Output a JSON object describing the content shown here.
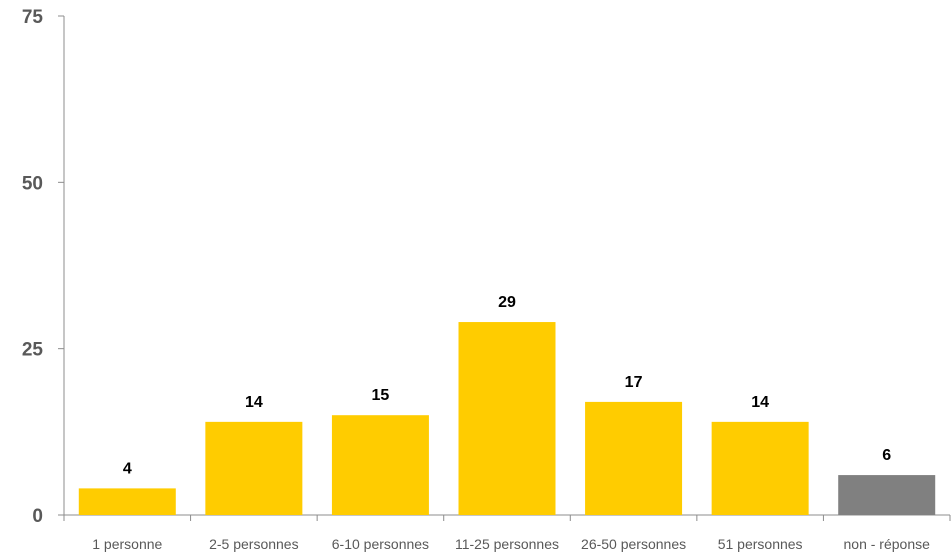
{
  "chart_data": {
    "type": "bar",
    "categories": [
      "1 personne",
      "2-5 personnes",
      "6-10 personnes",
      "11-25 personnes",
      "26-50 personnes",
      "51 personnes",
      "non - réponse"
    ],
    "values": [
      4,
      14,
      15,
      29,
      17,
      14,
      6
    ],
    "data_labels": [
      "4",
      "14",
      "15",
      "29",
      "17",
      "14",
      "6"
    ],
    "bar_colors": [
      "#ffcc00",
      "#ffcc00",
      "#ffcc00",
      "#ffcc00",
      "#ffcc00",
      "#ffcc00",
      "#808080"
    ],
    "yticks": [
      "0",
      "25",
      "50",
      "75"
    ],
    "ylim": [
      0,
      75
    ],
    "grid": false,
    "legend": "none",
    "title": "",
    "xlabel": "",
    "ylabel": ""
  }
}
